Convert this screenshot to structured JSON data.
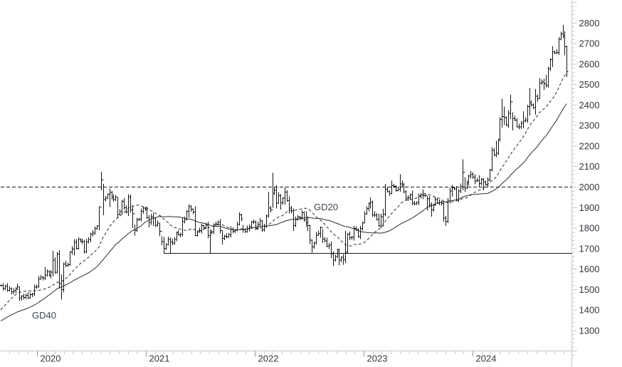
{
  "chart_data": {
    "type": "ohlc_weekly_bars",
    "title": "",
    "start_date": "2019-09-02",
    "bar_interval_days": 7,
    "y_axis": {
      "min": 1300,
      "max": 2800,
      "step": 100,
      "minor_step": 20,
      "tick_labels": [
        "1300",
        "1400",
        "1500",
        "1600",
        "1700",
        "1800",
        "1900",
        "2000",
        "2100",
        "2200",
        "2300",
        "2400",
        "2500",
        "2600",
        "2700",
        "2800"
      ]
    },
    "x_axis": {
      "year_labels": [
        "2020",
        "2021",
        "2022",
        "2023",
        "2024"
      ]
    },
    "horizontal_lines": [
      {
        "value": 2000,
        "style": "dashed",
        "from_week": 0
      },
      {
        "value": 1676,
        "style": "solid",
        "from_week": 78
      }
    ],
    "moving_averages": [
      {
        "label": "GD20",
        "window": 20,
        "style": "dashed"
      },
      {
        "label": "GD40",
        "window": 40,
        "style": "solid"
      }
    ],
    "pre_weekly_closes": [
      1252,
      1258,
      1264,
      1271,
      1280,
      1286,
      1291,
      1297,
      1303,
      1312,
      1320,
      1327,
      1318,
      1310,
      1301,
      1295,
      1290,
      1285,
      1281,
      1277,
      1282,
      1288,
      1292,
      1286,
      1280,
      1287,
      1308,
      1322,
      1340,
      1380,
      1412,
      1426,
      1440,
      1452,
      1465,
      1480,
      1497,
      1510,
      1523,
      1520
    ],
    "weekly": [
      1520,
      1507,
      1517,
      1497,
      1505,
      1489,
      1494,
      1505,
      1514,
      [
        1459,
        1516,
        1445
      ],
      1468,
      1462,
      1472,
      1460,
      1476,
      1479,
      1511,
      1515,
      1552,
      1560,
      1557,
      [
        1571,
        1611,
        1546
      ],
      1589,
      1570,
      1584,
      [
        1644,
        1689,
        1564
      ],
      1585,
      1674,
      [
        1530,
        1692,
        1504
      ],
      [
        1499,
        1575,
        1451
      ],
      1625,
      1618,
      1621,
      1683,
      1698,
      [
        1730,
        1747,
        1666
      ],
      1702,
      1744,
      1735,
      1734,
      1685,
      1732,
      1744,
      1771,
      1776,
      1799,
      1810,
      [
        1902,
        1906,
        1789
      ],
      [
        2035,
        2075,
        1985
      ],
      [
        1940,
        2015,
        1863
      ],
      1947,
      1965,
      [
        1974,
        1992,
        1903
      ],
      1951,
      1940,
      1951,
      [
        1866,
        1950,
        1849
      ],
      1880,
      1930,
      1900,
      1879,
      [
        1951,
        1965,
        1859
      ],
      1889,
      [
        1870,
        1910,
        1800
      ],
      [
        1788,
        1818,
        1764
      ],
      1840,
      1844,
      1881,
      1898,
      1893,
      1850,
      [
        1828,
        1863,
        1804
      ],
      1856,
      [
        1848,
        1875,
        1811
      ],
      1814,
      1824,
      [
        1784,
        1823,
        1760
      ],
      [
        1734,
        1760,
        1717
      ],
      [
        1701,
        1756,
        1677
      ],
      1720,
      1745,
      [
        1732,
        1755,
        1678
      ],
      1728,
      1744,
      1777,
      1768,
      1769,
      1832,
      1844,
      1881,
      [
        1904,
        1916,
        1851
      ],
      1892,
      1878,
      [
        1764,
        1907,
        1761
      ],
      1781,
      1787,
      1812,
      1802,
      1814,
      [
        1763,
        1832,
        1750
      ],
      [
        1780,
        1794,
        1677
      ],
      1781,
      1817,
      1819,
      1828,
      1788,
      [
        1750,
        1788,
        1721
      ],
      1761,
      1757,
      1768,
      1793,
      1784,
      1790,
      1818,
      [
        1865,
        1877,
        1812
      ],
      1845,
      [
        1792,
        1816,
        1778
      ],
      1783,
      1798,
      1808,
      1830,
      1829,
      1797,
      1817,
      [
        1835,
        1848,
        1805
      ],
      1792,
      1808,
      1859,
      [
        1898,
        1976,
        1850
      ],
      1889,
      [
        1970,
        2070,
        1900
      ],
      1985,
      [
        1922,
        2009,
        1895
      ],
      1958,
      [
        1924,
        1966,
        1890
      ],
      1946,
      [
        1975,
        1998,
        1915
      ],
      1934,
      [
        1897,
        1955,
        1872
      ],
      1883,
      [
        1812,
        1895,
        1787
      ],
      1842,
      1854,
      1851,
      1875,
      1840,
      [
        1827,
        1882,
        1805
      ],
      [
        1813,
        1857,
        1784
      ],
      [
        1742,
        1815,
        1722
      ],
      [
        1708,
        1745,
        1681
      ],
      1727,
      1766,
      1775,
      [
        1802,
        1808,
        1754
      ],
      [
        1747,
        1795,
        1727
      ],
      1738,
      1712,
      1716,
      [
        1675,
        1735,
        1654
      ],
      [
        1644,
        1688,
        1614
      ],
      1661,
      1695,
      [
        1644,
        1700,
        1617
      ],
      1657,
      [
        1645,
        1674,
        1621
      ],
      [
        1682,
        1787,
        1630
      ],
      1771,
      1754,
      1755,
      [
        1798,
        1810,
        1740
      ],
      1793,
      1758,
      1798,
      1824,
      [
        1870,
        1881,
        1824
      ],
      1896,
      1920,
      [
        1926,
        1949,
        1896
      ],
      1865,
      1862,
      1842,
      [
        1811,
        1870,
        1805
      ],
      1856,
      [
        1868,
        1894,
        1808
      ],
      [
        1989,
        2015,
        1858
      ],
      1978,
      1969,
      [
        2007,
        2032,
        1965
      ],
      2004,
      1983,
      1990,
      [
        2016,
        2063,
        1977
      ],
      2011,
      1977,
      [
        1946,
        1985,
        1936
      ],
      1948,
      1961,
      [
        1921,
        1983,
        1911
      ],
      1919,
      1925,
      1955,
      1962,
      [
        1959,
        1988,
        1941
      ],
      1958,
      [
        1942,
        1954,
        1885
      ],
      1913,
      [
        1889,
        1925,
        1855
      ],
      1914,
      1939,
      1923,
      1925,
      1920,
      [
        1848,
        1928,
        1832
      ],
      [
        1833,
        1860,
        1810
      ],
      [
        1932,
        1947,
        1824
      ],
      1981,
      [
        1996,
        2010,
        1953
      ],
      1992,
      [
        1940,
        2005,
        1932
      ],
      1981,
      2002,
      [
        2072,
        2135,
        1985
      ],
      [
        1995,
        2048,
        1975
      ],
      2020,
      2053,
      2062,
      2049,
      [
        2029,
        2062,
        2014
      ],
      2031,
      [
        2018,
        2058,
        2001
      ],
      2039,
      [
        2024,
        2044,
        1984
      ],
      2013,
      2035,
      [
        2083,
        2088,
        2029
      ],
      [
        2179,
        2195,
        2076
      ],
      2156,
      [
        2165,
        2225,
        2146
      ],
      [
        2233,
        2236,
        2157
      ],
      2330,
      [
        2344,
        2431,
        2291
      ],
      [
        2338,
        2392,
        2302
      ],
      2302,
      2360,
      [
        2415,
        2450,
        2332
      ],
      [
        2334,
        2364,
        2277
      ],
      2327,
      2294,
      2293,
      2311,
      [
        2322,
        2369,
        2287
      ],
      2327,
      2392,
      [
        2411,
        2483,
        2350
      ],
      2402,
      2387,
      [
        2443,
        2477,
        2353
      ],
      2431,
      [
        2508,
        2532,
        2432
      ],
      2513,
      [
        2503,
        2529,
        2472
      ],
      [
        2497,
        2548,
        2485
      ],
      2577,
      2622,
      [
        2658,
        2686,
        2585
      ],
      2654,
      2657,
      2721,
      [
        2747,
        2758,
        2715
      ],
      [
        2737,
        2790,
        2725
      ],
      [
        2684,
        2760,
        2643
      ],
      [
        2563,
        2690,
        2536
      ]
    ]
  },
  "annotations": {
    "gd20": "GD20",
    "gd40": "GD40"
  },
  "colors": {
    "background": "#ffffff",
    "bars": "#141414",
    "ma_line": "#2b2b2b",
    "level_line": "#1a1a1a",
    "axis_line": "#c6c6c6",
    "minor_tick": "#c6c6c6",
    "year_tick": "#9a9a9a",
    "tick_label": "#33373d",
    "gd_label": "#3e4552"
  }
}
